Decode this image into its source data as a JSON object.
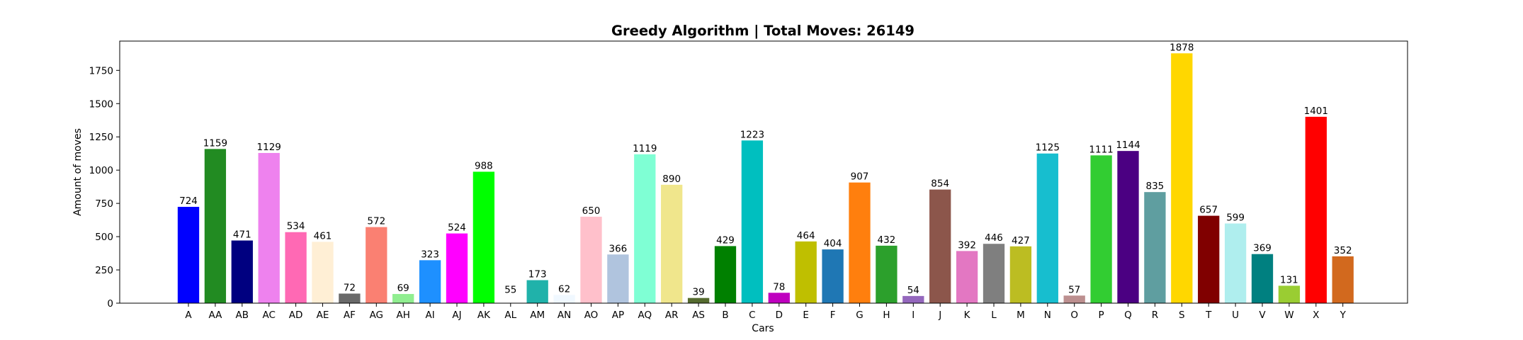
{
  "chart_data": {
    "type": "bar",
    "title": "Greedy Algorithm | Total Moves: 26149",
    "xlabel": "Cars",
    "ylabel": "Amount of moves",
    "ylim": [
      0,
      1970
    ],
    "yticks": [
      0,
      250,
      500,
      750,
      1000,
      1250,
      1500,
      1750
    ],
    "grid": false,
    "categories": [
      "A",
      "AA",
      "AB",
      "AC",
      "AD",
      "AE",
      "AF",
      "AG",
      "AH",
      "AI",
      "AJ",
      "AK",
      "AL",
      "AM",
      "AN",
      "AO",
      "AP",
      "AQ",
      "AR",
      "AS",
      "B",
      "C",
      "D",
      "E",
      "F",
      "G",
      "H",
      "I",
      "J",
      "K",
      "L",
      "M",
      "N",
      "O",
      "P",
      "Q",
      "R",
      "S",
      "T",
      "U",
      "V",
      "W",
      "X",
      "Y"
    ],
    "values": [
      724,
      1159,
      471,
      1129,
      534,
      461,
      72,
      572,
      69,
      323,
      524,
      988,
      55,
      173,
      62,
      650,
      366,
      1119,
      890,
      39,
      429,
      1223,
      78,
      464,
      404,
      907,
      432,
      54,
      854,
      392,
      446,
      427,
      1125,
      57,
      1111,
      1144,
      835,
      1878,
      657,
      599,
      369,
      131,
      1401,
      352
    ],
    "colors": [
      "#0000ff",
      "#228b22",
      "#000080",
      "#ee82ee",
      "#ff69b4",
      "#ffefd5",
      "#696969",
      "#fa8072",
      "#90ee90",
      "#1e90ff",
      "#ff00ff",
      "#00ff00",
      "#ffffff",
      "#20b2aa",
      "#f0f8ff",
      "#ffc0cb",
      "#b0c4de",
      "#7fffd4",
      "#f0e68c",
      "#556b2f",
      "#008000",
      "#00bfbf",
      "#bf00bf",
      "#bfbf00",
      "#1f77b4",
      "#ff7f0e",
      "#2ca02c",
      "#9467bd",
      "#8c564b",
      "#e377c2",
      "#7f7f7f",
      "#bcbd22",
      "#17becf",
      "#bc8f8f",
      "#32cd32",
      "#4b0082",
      "#5f9ea0",
      "#ffd700",
      "#800000",
      "#afeeee",
      "#008080",
      "#9acd32",
      "#ff0000",
      "#d2691e"
    ]
  }
}
